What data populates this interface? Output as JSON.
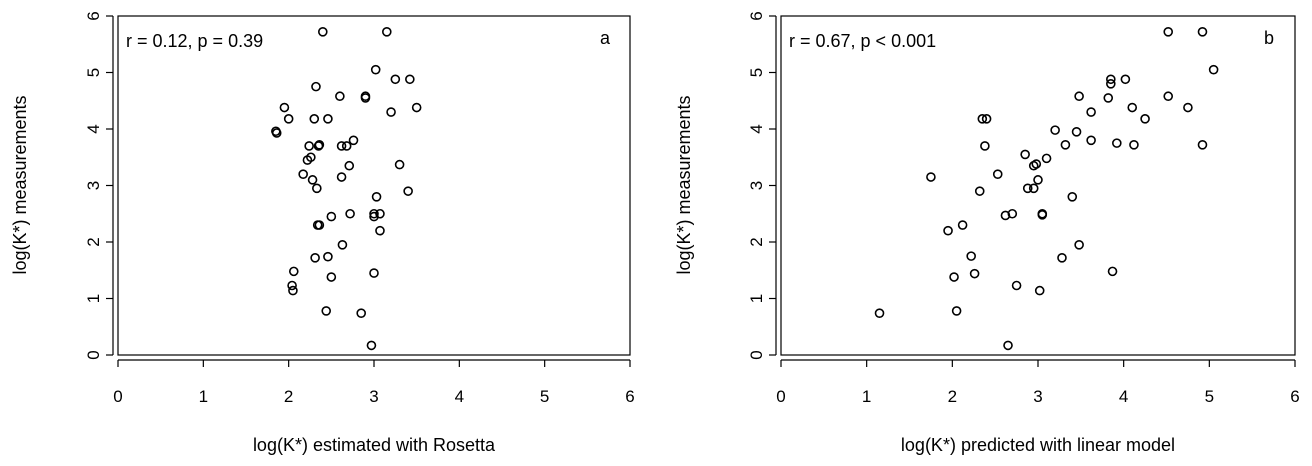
{
  "chart_data": [
    {
      "type": "scatter",
      "xlabel": "log(K*) estimated with Rosetta",
      "ylabel": "log(K*) measurements",
      "annotation": "r = 0.12, p = 0.39",
      "panel_label": "a",
      "xlim": [
        0,
        6
      ],
      "ylim": [
        0,
        6
      ],
      "xticks": [
        "0",
        "1",
        "2",
        "3",
        "4",
        "5",
        "6"
      ],
      "yticks": [
        "0",
        "1",
        "2",
        "3",
        "4",
        "5",
        "6"
      ],
      "grid": false,
      "series": [
        {
          "x": [
            2.4,
            3.15,
            3.02,
            3.25,
            3.42,
            2.32,
            1.95,
            3.5,
            2.6,
            2.9,
            2.9,
            3.2,
            2.0,
            2.3,
            2.46,
            1.85,
            1.86,
            2.36,
            2.35,
            2.76,
            2.62,
            2.68,
            2.24,
            2.26,
            2.22,
            2.71,
            2.17,
            2.62,
            3.3,
            2.28,
            2.33,
            3.4,
            3.03,
            2.34,
            2.5,
            2.72,
            3.0,
            3.07,
            3.0,
            2.36,
            3.07,
            2.63,
            2.31,
            2.46,
            2.06,
            2.5,
            3.0,
            2.04,
            2.05,
            2.44,
            2.85,
            2.97
          ],
          "y": [
            5.72,
            5.72,
            5.05,
            4.88,
            4.88,
            4.75,
            4.38,
            4.38,
            4.58,
            4.58,
            4.55,
            4.3,
            4.18,
            4.18,
            4.18,
            3.96,
            3.93,
            3.72,
            3.7,
            3.8,
            3.7,
            3.7,
            3.7,
            3.5,
            3.45,
            3.35,
            3.2,
            3.15,
            3.37,
            3.1,
            2.95,
            2.9,
            2.8,
            2.3,
            2.45,
            2.5,
            2.5,
            2.5,
            2.45,
            2.3,
            2.2,
            1.95,
            1.72,
            1.74,
            1.48,
            1.38,
            1.45,
            1.23,
            1.14,
            0.78,
            0.74,
            0.17
          ]
        }
      ]
    },
    {
      "type": "scatter",
      "xlabel": "log(K*) predicted with linear model",
      "ylabel": "log(K*) measurements",
      "annotation": "r = 0.67, p < 0.001",
      "panel_label": "b",
      "xlim": [
        0,
        6
      ],
      "ylim": [
        0,
        6
      ],
      "xticks": [
        "0",
        "1",
        "2",
        "3",
        "4",
        "5",
        "6"
      ],
      "yticks": [
        "0",
        "1",
        "2",
        "3",
        "4",
        "5",
        "6"
      ],
      "grid": false,
      "series": [
        {
          "x": [
            4.52,
            4.92,
            5.05,
            4.02,
            3.85,
            3.85,
            3.82,
            4.52,
            4.75,
            3.48,
            4.1,
            3.62,
            4.25,
            3.2,
            3.45,
            2.35,
            2.4,
            3.92,
            4.12,
            3.62,
            3.32,
            4.92,
            2.38,
            2.85,
            2.98,
            2.95,
            3.1,
            3.0,
            2.95,
            1.75,
            2.53,
            2.88,
            2.32,
            3.4,
            3.05,
            3.05,
            2.62,
            2.7,
            2.12,
            1.95,
            2.22,
            3.48,
            3.28,
            2.02,
            2.26,
            3.87,
            2.75,
            3.02,
            1.15,
            2.05,
            2.65
          ],
          "y": [
            5.72,
            5.72,
            5.05,
            4.88,
            4.88,
            4.8,
            4.55,
            4.58,
            4.38,
            4.58,
            4.38,
            4.3,
            4.18,
            3.98,
            3.95,
            4.18,
            4.18,
            3.75,
            3.72,
            3.8,
            3.72,
            3.72,
            3.7,
            3.55,
            3.38,
            3.35,
            3.48,
            3.1,
            2.95,
            3.15,
            3.2,
            2.95,
            2.9,
            2.8,
            2.5,
            2.48,
            2.47,
            2.5,
            2.3,
            2.2,
            1.75,
            1.95,
            1.72,
            1.38,
            1.44,
            1.48,
            1.23,
            1.14,
            0.74,
            0.78,
            0.17
          ]
        }
      ]
    }
  ]
}
